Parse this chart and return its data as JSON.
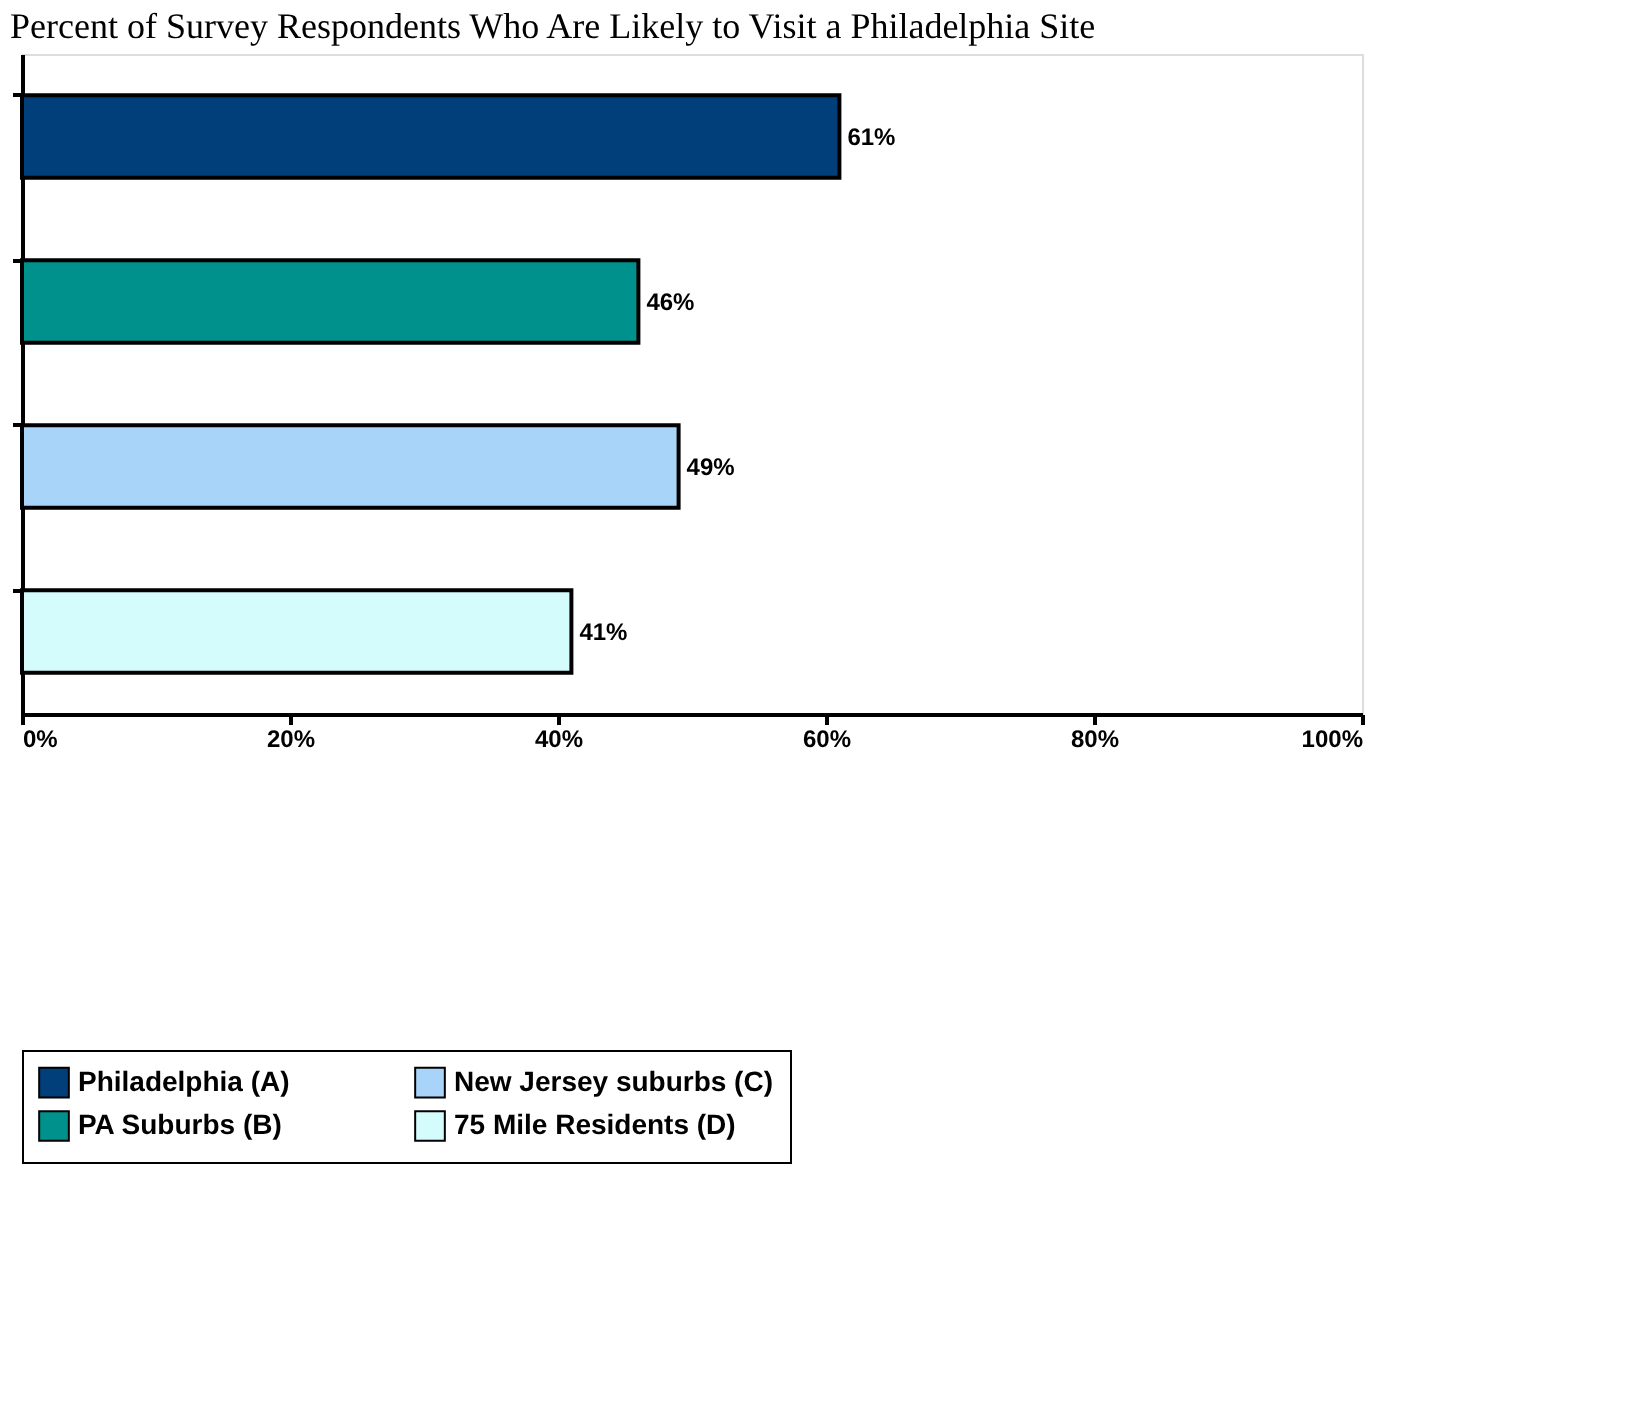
{
  "chart_data": {
    "type": "bar",
    "orientation": "horizontal",
    "title": "Percent of Survey Respondents Who Are Likely to Visit a Philadelphia Site",
    "categories": [
      null,
      null,
      null,
      null
    ],
    "series": [
      {
        "name": "Philadelphia (A)",
        "color": "#003f7a",
        "values": [
          61,
          null,
          null,
          null
        ],
        "value_labels": [
          "61%",
          null,
          null,
          null
        ]
      },
      {
        "name": "PA Suburbs (B)",
        "color": "#00918c",
        "values": [
          null,
          46,
          null,
          null
        ],
        "value_labels": [
          null,
          "46%",
          null,
          null
        ]
      },
      {
        "name": "New Jersey suburbs (C)",
        "color": "#a8d4fa",
        "values": [
          null,
          null,
          49,
          null
        ],
        "value_labels": [
          null,
          null,
          "49%",
          null
        ]
      },
      {
        "name": "75 Mile Residents (D)",
        "color": "#d4fcfc",
        "values": [
          null,
          null,
          null,
          41
        ],
        "value_labels": [
          null,
          null,
          null,
          "41%"
        ]
      }
    ],
    "xlim": [
      0,
      100
    ],
    "xticks": [
      {
        "value": 0,
        "label": "0%"
      },
      {
        "value": 20,
        "label": "20%"
      },
      {
        "value": 40,
        "label": "40%"
      },
      {
        "value": 60,
        "label": "60%"
      },
      {
        "value": 80,
        "label": "80%"
      },
      {
        "value": 100,
        "label": "100%"
      }
    ],
    "legend": "bottom",
    "grid": false
  }
}
